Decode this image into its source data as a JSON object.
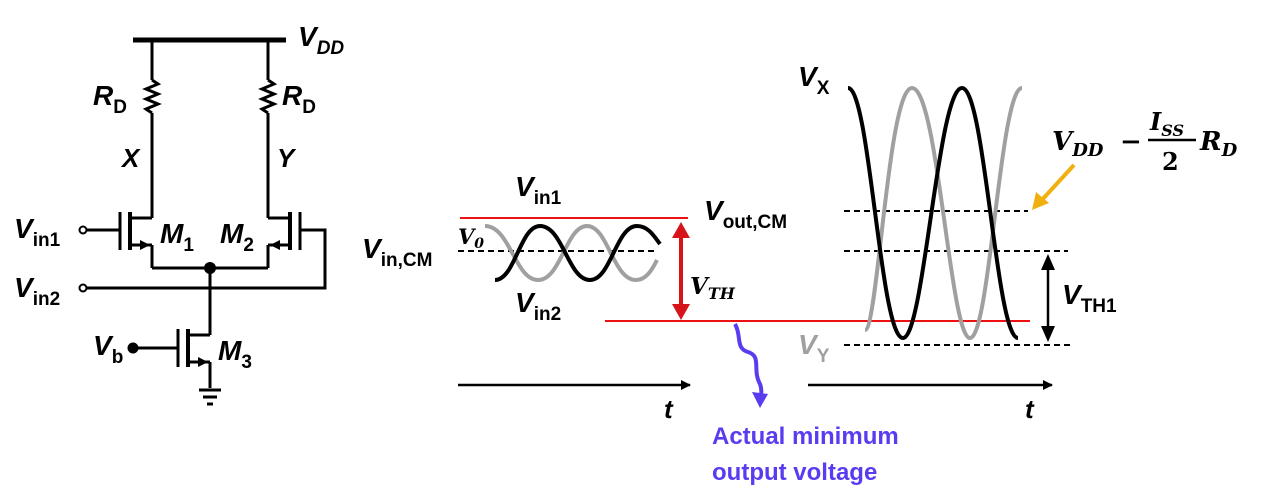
{
  "circuit": {
    "vdd": {
      "main": "V",
      "sub": "DD"
    },
    "rd_left": {
      "main": "R",
      "sub": "D"
    },
    "rd_right": {
      "main": "R",
      "sub": "D"
    },
    "node_x": "X",
    "node_y": "Y",
    "vin1": {
      "main": "V",
      "sub": "in1"
    },
    "vin2": {
      "main": "V",
      "sub": "in2"
    },
    "m1": {
      "main": "M",
      "sub": "1"
    },
    "m2": {
      "main": "M",
      "sub": "2"
    },
    "m3": {
      "main": "M",
      "sub": "3"
    },
    "vb": {
      "main": "V",
      "sub": "b"
    }
  },
  "input_waveform": {
    "vin1": {
      "main": "V",
      "sub": "in1"
    },
    "vin2": {
      "main": "V",
      "sub": "in2"
    },
    "vin_cm": {
      "main": "V",
      "sub": "in,CM"
    },
    "v0": {
      "main": "V",
      "sub": "0"
    },
    "vth": {
      "main": "V",
      "sub": "TH"
    },
    "t_axis": "t"
  },
  "output_waveform": {
    "vx": {
      "main": "V",
      "sub": "X"
    },
    "vy": {
      "main": "V",
      "sub": "Y"
    },
    "vout_cm": {
      "main": "V",
      "sub": "out,CM"
    },
    "vth1": {
      "main": "V",
      "sub": "TH1"
    },
    "t_axis": "t",
    "formula": {
      "vdd_main": "V",
      "vdd_sub": "DD",
      "minus": "−",
      "num_main": "I",
      "num_sub": "SS",
      "den": "2",
      "rd_main": "R",
      "rd_sub": "D"
    }
  },
  "annotation": {
    "line1": "Actual minimum",
    "line2": "output voltage"
  },
  "colors": {
    "red": "#ee1111",
    "dark_red": "#d8141b",
    "gray": "#a0a0a0",
    "blue": "#5a3cf0",
    "orange": "#f0b010",
    "black": "#000000"
  }
}
